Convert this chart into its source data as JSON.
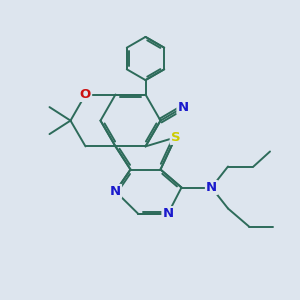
{
  "bg_color": "#dde5ee",
  "bond_color": "#2d6b5a",
  "bond_width": 1.4,
  "atom_colors": {
    "N": "#1a1acc",
    "O": "#cc1111",
    "S": "#cccc00",
    "C": "#2d6b5a"
  },
  "figsize": [
    3.0,
    3.0
  ],
  "dpi": 100,
  "xlim": [
    0,
    10
  ],
  "ylim": [
    0,
    10
  ]
}
